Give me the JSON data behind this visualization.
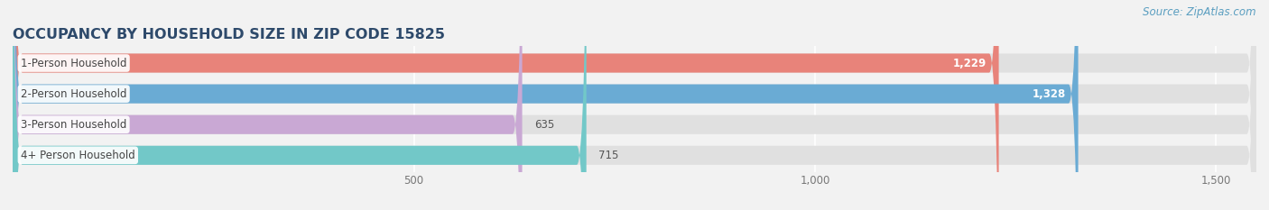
{
  "title": "OCCUPANCY BY HOUSEHOLD SIZE IN ZIP CODE 15825",
  "source_text": "Source: ZipAtlas.com",
  "categories": [
    "1-Person Household",
    "2-Person Household",
    "3-Person Household",
    "4+ Person Household"
  ],
  "values": [
    1229,
    1328,
    635,
    715
  ],
  "bar_colors": [
    "#e8837a",
    "#6aabd4",
    "#c9a8d4",
    "#72c8c8"
  ],
  "xlim_max": 1550,
  "xticks": [
    500,
    1000,
    1500
  ],
  "background_color": "#f2f2f2",
  "bar_bg_color": "#e0e0e0",
  "title_color": "#2e4a6b",
  "title_fontsize": 11.5,
  "source_fontsize": 8.5,
  "label_fontsize": 8.5,
  "value_fontsize": 8.5,
  "bar_height": 0.62
}
